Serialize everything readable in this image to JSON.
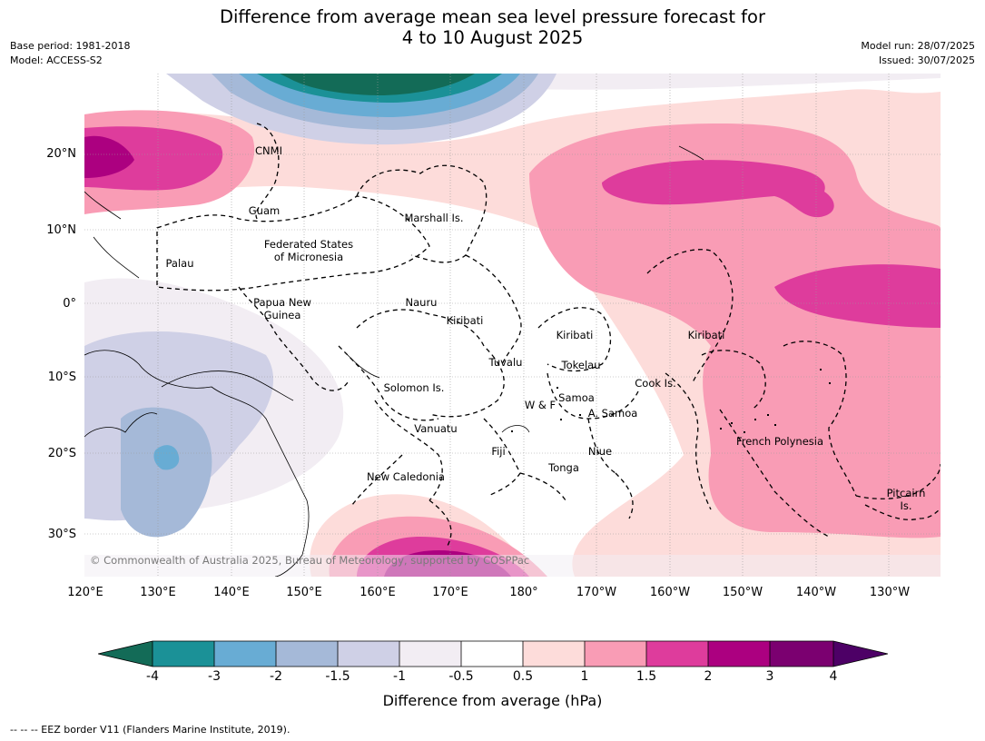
{
  "title_line1": "Difference from average mean sea level pressure forecast for",
  "title_line2": "4 to 10 August 2025",
  "meta": {
    "base_period": "Base period: 1981-2018",
    "model": "Model: ACCESS-S2",
    "model_run": "Model run: 28/07/2025",
    "issued": "Issued: 30/07/2025"
  },
  "lat_ticks": [
    "20°N",
    "10°N",
    "0°",
    "10°S",
    "20°S",
    "30°S"
  ],
  "lon_ticks": [
    "120°E",
    "130°E",
    "140°E",
    "150°E",
    "160°E",
    "170°E",
    "180°",
    "170°W",
    "160°W",
    "150°W",
    "140°W",
    "130°W"
  ],
  "places": {
    "cnmi": "CNMI",
    "guam": "Guam",
    "marshall": "Marshall Is.",
    "fsm": "Federated States\nof Micronesia",
    "palau": "Palau",
    "png": "Papua New\nGuinea",
    "nauru": "Nauru",
    "kiribati_west": "Kiribati",
    "kiribati_central": "Kiribati",
    "kiribati_east": "Kiribati",
    "tuvalu": "Tuvalu",
    "tokelau": "Tokelau",
    "cook": "Cook Is.",
    "solomon": "Solomon Is.",
    "samoa": "Samoa",
    "wf": "W & F",
    "asamoa": "A. Samoa",
    "vanuatu": "Vanuatu",
    "fiji": "Fiji",
    "niue": "Niue",
    "tonga": "Tonga",
    "newcal": "New Caledonia",
    "fpoly": "French Polynesia",
    "pitcairn": "Pitcairn\nIs."
  },
  "copyright": "© Commonwealth of Australia 2025, Bureau of Meteorology, supported by COSPPac",
  "colorbar": {
    "ticks": [
      "-4",
      "-3",
      "-2",
      "-1.5",
      "-1",
      "-0.5",
      "0.5",
      "1",
      "1.5",
      "2",
      "3",
      "4"
    ],
    "colors": [
      "#136b57",
      "#1b9197",
      "#68acd4",
      "#a5b9d8",
      "#cfd0e6",
      "#f2edf3",
      "#ffffff",
      "#fddcda",
      "#f99cb5",
      "#de3c9c",
      "#ac0080",
      "#7b0070",
      "#4d0066"
    ],
    "label": "Difference from average (hPa)"
  },
  "footnote": "--  --  -- EEZ border V11 (Flanders Marine Institute, 2019)."
}
